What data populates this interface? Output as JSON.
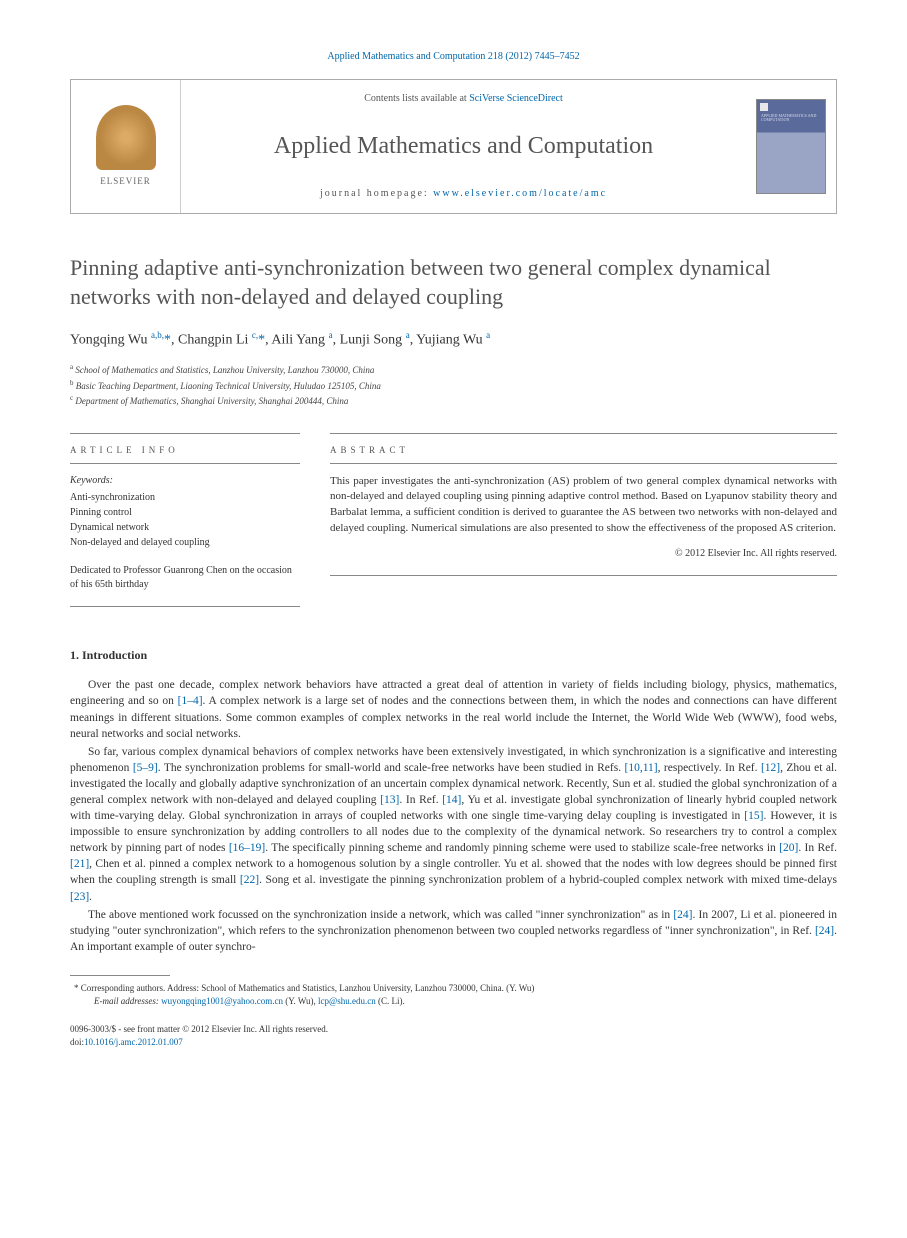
{
  "citation": "Applied Mathematics and Computation 218 (2012) 7445–7452",
  "header": {
    "contents_prefix": "Contents lists available at ",
    "contents_link": "SciVerse ScienceDirect",
    "journal_name": "Applied Mathematics and Computation",
    "homepage_prefix": "journal homepage: ",
    "homepage_url": "www.elsevier.com/locate/amc",
    "publisher_logo": "ELSEVIER",
    "cover_text": "APPLIED MATHEMATICS AND COMPUTATION"
  },
  "title": "Pinning adaptive anti-synchronization between two general complex dynamical networks with non-delayed and delayed coupling",
  "authors_html": "Yongqing Wu <sup>a,b,</sup><span class='corr'>*</span>, Changpin Li <sup>c,</sup><span class='corr'>*</span>, Aili Yang <sup>a</sup>, Lunji Song <sup>a</sup>, Yujiang Wu <sup>a</sup>",
  "affiliations": [
    {
      "sup": "a",
      "text": "School of Mathematics and Statistics, Lanzhou University, Lanzhou 730000, China"
    },
    {
      "sup": "b",
      "text": "Basic Teaching Department, Liaoning Technical University, Huludao 125105, China"
    },
    {
      "sup": "c",
      "text": "Department of Mathematics, Shanghai University, Shanghai 200444, China"
    }
  ],
  "article_info": {
    "label": "ARTICLE INFO",
    "keywords_label": "Keywords:",
    "keywords": [
      "Anti-synchronization",
      "Pinning control",
      "Dynamical network",
      "Non-delayed and delayed coupling"
    ],
    "dedication": "Dedicated to Professor Guanrong Chen on the occasion of his 65th birthday"
  },
  "abstract": {
    "label": "ABSTRACT",
    "text": "This paper investigates the anti-synchronization (AS) problem of two general complex dynamical networks with non-delayed and delayed coupling using pinning adaptive control method. Based on Lyapunov stability theory and Barbalat lemma, a sufficient condition is derived to guarantee the AS between two networks with non-delayed and delayed coupling. Numerical simulations are also presented to show the effectiveness of the proposed AS criterion.",
    "copyright": "© 2012 Elsevier Inc. All rights reserved."
  },
  "intro": {
    "heading": "1. Introduction",
    "p1_pre": "Over the past one decade, complex network behaviors have attracted a great deal of attention in variety of fields including biology, physics, mathematics, engineering and so on ",
    "p1_ref1": "[1–4]",
    "p1_post": ". A complex network is a large set of nodes and the connections between them, in which the nodes and connections can have different meanings in different situations. Some common examples of complex networks in the real world include the Internet, the World Wide Web (WWW), food webs, neural networks and social networks.",
    "p2_a": "So far, various complex dynamical behaviors of complex networks have been extensively investigated, in which synchronization is a significative and interesting phenomenon ",
    "p2_r1": "[5–9]",
    "p2_b": ". The synchronization problems for small-world and scale-free networks have been studied in Refs. ",
    "p2_r2": "[10,11]",
    "p2_c": ", respectively. In Ref. ",
    "p2_r3": "[12]",
    "p2_d": ", Zhou et al. investigated the locally and globally adaptive synchronization of an uncertain complex dynamical network. Recently, Sun et al. studied the global synchronization of a general complex network with non-delayed and delayed coupling ",
    "p2_r4": "[13]",
    "p2_e": ". In Ref. ",
    "p2_r5": "[14]",
    "p2_f": ", Yu et al. investigate global synchronization of linearly hybrid coupled network with time-varying delay. Global synchronization in arrays of coupled networks with one single time-varying delay coupling is investigated in ",
    "p2_r6": "[15]",
    "p2_g": ". However, it is impossible to ensure synchronization by adding controllers to all nodes due to the complexity of the dynamical network. So researchers try to control a complex network by pinning part of nodes ",
    "p2_r7": "[16–19]",
    "p2_h": ". The specifically pinning scheme and randomly pinning scheme were used to stabilize scale-free networks in ",
    "p2_r8": "[20]",
    "p2_i": ". In Ref. ",
    "p2_r9": "[21]",
    "p2_j": ", Chen et al. pinned a complex network to a homogenous solution by a single controller. Yu et al. showed that the nodes with low degrees should be pinned first when the coupling strength is small ",
    "p2_r10": "[22]",
    "p2_k": ". Song et al. investigate the pinning synchronization problem of a hybrid-coupled complex network with mixed time-delays ",
    "p2_r11": "[23]",
    "p2_l": ".",
    "p3_a": "The above mentioned work focussed on the synchronization inside a network, which was called \"inner synchronization\" as in ",
    "p3_r1": "[24]",
    "p3_b": ". In 2007, Li et al. pioneered in studying \"outer synchronization\", which refers to the synchronization phenomenon between two coupled networks regardless of \"inner synchronization\", in Ref. ",
    "p3_r2": "[24]",
    "p3_c": ". An important example of outer synchro-"
  },
  "footnotes": {
    "corr_marker": "*",
    "corr_text": " Corresponding authors. Address: School of Mathematics and Statistics, Lanzhou University, Lanzhou 730000, China. (Y. Wu)",
    "email_label": "E-mail addresses: ",
    "email1": "wuyongqing1001@yahoo.com.cn",
    "email1_who": " (Y. Wu), ",
    "email2": "lcp@shu.edu.cn",
    "email2_who": " (C. Li)."
  },
  "footer": {
    "line1": "0096-3003/$ - see front matter © 2012 Elsevier Inc. All rights reserved.",
    "doi_label": "doi:",
    "doi": "10.1016/j.amc.2012.01.007"
  },
  "colors": {
    "link": "#0066aa",
    "text": "#333333",
    "heading_gray": "#555555",
    "rule": "#888888"
  }
}
